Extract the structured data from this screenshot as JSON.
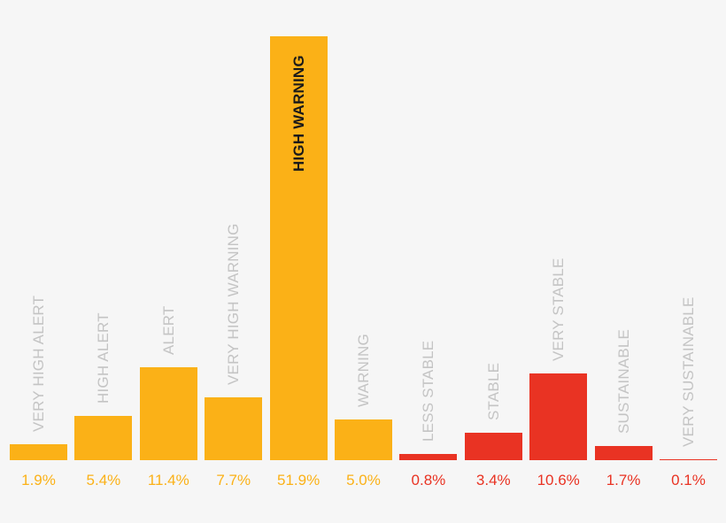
{
  "chart_data": {
    "type": "bar",
    "title": "",
    "xlabel": "",
    "ylabel": "",
    "grid": false,
    "legend": null,
    "ylim": [
      0,
      52
    ],
    "categories": [
      "VERY HIGH ALERT",
      "HIGH ALERT",
      "ALERT",
      "VERY HIGH WARNING",
      "HIGH WARNING",
      "WARNING",
      "LESS STABLE",
      "STABLE",
      "VERY STABLE",
      "SUSTAINABLE",
      "VERY SUSTAINABLE"
    ],
    "values": [
      1.9,
      5.4,
      11.4,
      7.7,
      51.9,
      5.0,
      0.8,
      3.4,
      10.6,
      1.7,
      0.1
    ],
    "value_labels": [
      "1.9%",
      "5.4%",
      "11.4%",
      "7.7%",
      "51.9%",
      "5.0%",
      "0.8%",
      "3.4%",
      "10.6%",
      "1.7%",
      "0.1%"
    ],
    "groups": [
      {
        "name": "warning-group",
        "color": "#fbb117",
        "indices": [
          0,
          1,
          2,
          3,
          4,
          5
        ]
      },
      {
        "name": "stable-group",
        "color": "#e93323",
        "indices": [
          6,
          7,
          8,
          9,
          10
        ]
      }
    ],
    "colors": [
      "#fbb117",
      "#fbb117",
      "#fbb117",
      "#fbb117",
      "#fbb117",
      "#fbb117",
      "#e93323",
      "#e93323",
      "#e93323",
      "#e93323",
      "#e93323"
    ],
    "highlighted_index": 4,
    "category_label_color": "#c4c4c4",
    "highlighted_label_color": "#1a1a1a"
  }
}
